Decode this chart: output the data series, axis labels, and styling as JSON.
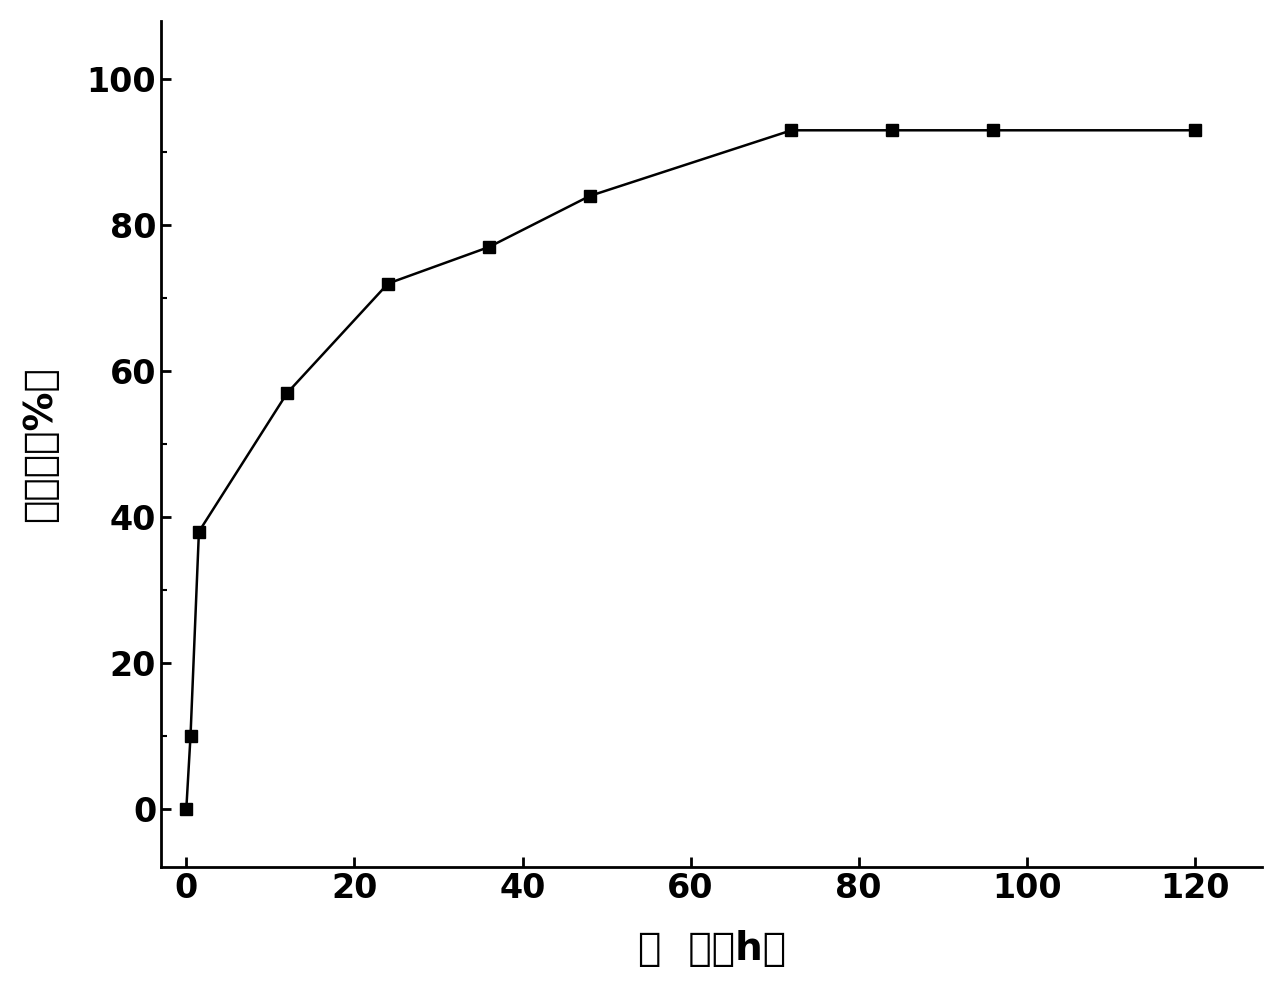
{
  "x": [
    0,
    0.5,
    1.5,
    12,
    24,
    36,
    48,
    72,
    84,
    96,
    120
  ],
  "y": [
    0,
    10,
    38,
    57,
    72,
    77,
    84,
    93,
    93,
    93,
    93
  ],
  "xlabel": "时  间（h）",
  "ylabel_chars": [
    "转",
    "化",
    "率",
    "（%）"
  ],
  "xlim": [
    -3,
    128
  ],
  "ylim": [
    -8,
    108
  ],
  "xticks": [
    0,
    20,
    40,
    60,
    80,
    100,
    120
  ],
  "yticks": [
    0,
    20,
    40,
    60,
    80,
    100
  ],
  "marker": "s",
  "marker_color": "#000000",
  "line_color": "#000000",
  "marker_size": 9,
  "line_width": 1.8,
  "background_color": "#ffffff",
  "xlabel_fontsize": 28,
  "ylabel_fontsize": 28,
  "tick_fontsize": 24,
  "linestyle": "-"
}
